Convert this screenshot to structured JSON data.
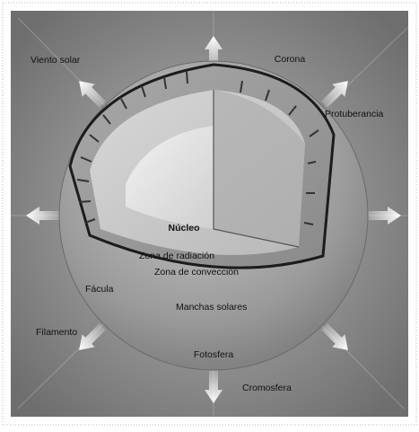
{
  "labels": {
    "solar_wind": "Viento solar",
    "corona": "Corona",
    "prominence": "Protuberancia",
    "core": "Núcleo",
    "radiative_zone": "Zona de radiación",
    "convection_zone": "Zona de convección",
    "facula": "Fácula",
    "sunspots": "Manchas solares",
    "filament": "Filamento",
    "photosphere": "Fotosfera",
    "chromosphere": "Cromosfera"
  }
}
